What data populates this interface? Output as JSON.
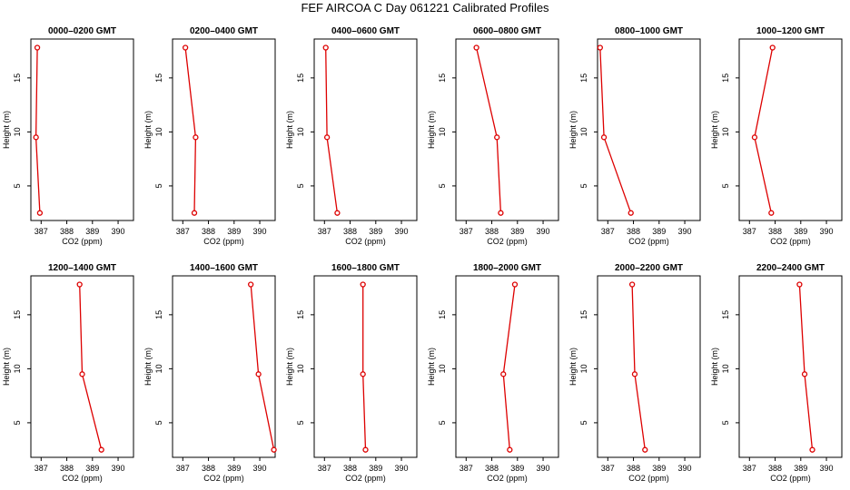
{
  "title": "FEF AIRCOA C  Day 061221  Calibrated Profiles",
  "colors": {
    "series": "#dd0000",
    "axis": "#000000"
  },
  "chart_data": [
    {
      "type": "line",
      "title": "0000–0200 GMT",
      "xlabel": "CO2 (ppm)",
      "ylabel": "Height (m)",
      "xlim": [
        386.6,
        390.6
      ],
      "ylim": [
        1.8,
        18.6
      ],
      "xticks": [
        387,
        388,
        389,
        390
      ],
      "yticks": [
        5,
        10,
        15
      ],
      "series": [
        {
          "x": [
            386.85,
            386.8,
            386.95
          ],
          "y": [
            17.8,
            9.5,
            2.5
          ]
        }
      ]
    },
    {
      "type": "line",
      "title": "0200–0400 GMT",
      "xlabel": "CO2 (ppm)",
      "ylabel": "Height (m)",
      "xlim": [
        386.6,
        390.6
      ],
      "ylim": [
        1.8,
        18.6
      ],
      "xticks": [
        387,
        388,
        389,
        390
      ],
      "yticks": [
        5,
        10,
        15
      ],
      "series": [
        {
          "x": [
            387.1,
            387.5,
            387.45
          ],
          "y": [
            17.8,
            9.5,
            2.5
          ]
        }
      ]
    },
    {
      "type": "line",
      "title": "0400–0600 GMT",
      "xlabel": "CO2 (ppm)",
      "ylabel": "Height (m)",
      "xlim": [
        386.6,
        390.6
      ],
      "ylim": [
        1.8,
        18.6
      ],
      "xticks": [
        387,
        388,
        389,
        390
      ],
      "yticks": [
        5,
        10,
        15
      ],
      "series": [
        {
          "x": [
            387.05,
            387.1,
            387.5
          ],
          "y": [
            17.8,
            9.5,
            2.5
          ]
        }
      ]
    },
    {
      "type": "line",
      "title": "0600–0800 GMT",
      "xlabel": "CO2 (ppm)",
      "ylabel": "Height (m)",
      "xlim": [
        386.6,
        390.6
      ],
      "ylim": [
        1.8,
        18.6
      ],
      "xticks": [
        387,
        388,
        389,
        390
      ],
      "yticks": [
        5,
        10,
        15
      ],
      "series": [
        {
          "x": [
            387.4,
            388.2,
            388.35
          ],
          "y": [
            17.8,
            9.5,
            2.5
          ]
        }
      ]
    },
    {
      "type": "line",
      "title": "0800–1000 GMT",
      "xlabel": "CO2 (ppm)",
      "ylabel": "Height (m)",
      "xlim": [
        386.6,
        390.6
      ],
      "ylim": [
        1.8,
        18.6
      ],
      "xticks": [
        387,
        388,
        389,
        390
      ],
      "yticks": [
        5,
        10,
        15
      ],
      "series": [
        {
          "x": [
            386.7,
            386.85,
            387.9
          ],
          "y": [
            17.8,
            9.5,
            2.5
          ]
        }
      ]
    },
    {
      "type": "line",
      "title": "1000–1200 GMT",
      "xlabel": "CO2 (ppm)",
      "ylabel": "Height (m)",
      "xlim": [
        386.6,
        390.6
      ],
      "ylim": [
        1.8,
        18.6
      ],
      "xticks": [
        387,
        388,
        389,
        390
      ],
      "yticks": [
        5,
        10,
        15
      ],
      "series": [
        {
          "x": [
            387.9,
            387.2,
            387.85
          ],
          "y": [
            17.8,
            9.5,
            2.5
          ]
        }
      ]
    },
    {
      "type": "line",
      "title": "1200–1400 GMT",
      "xlabel": "CO2 (ppm)",
      "ylabel": "Height (m)",
      "xlim": [
        386.6,
        390.6
      ],
      "ylim": [
        1.8,
        18.6
      ],
      "xticks": [
        387,
        388,
        389,
        390
      ],
      "yticks": [
        5,
        10,
        15
      ],
      "series": [
        {
          "x": [
            388.5,
            388.6,
            389.35
          ],
          "y": [
            17.8,
            9.5,
            2.5
          ]
        }
      ]
    },
    {
      "type": "line",
      "title": "1400–1600 GMT",
      "xlabel": "CO2 (ppm)",
      "ylabel": "Height (m)",
      "xlim": [
        386.6,
        390.6
      ],
      "ylim": [
        1.8,
        18.6
      ],
      "xticks": [
        387,
        388,
        389,
        390
      ],
      "yticks": [
        5,
        10,
        15
      ],
      "series": [
        {
          "x": [
            389.65,
            389.95,
            390.55
          ],
          "y": [
            17.8,
            9.5,
            2.5
          ]
        }
      ]
    },
    {
      "type": "line",
      "title": "1600–1800 GMT",
      "xlabel": "CO2 (ppm)",
      "ylabel": "Height (m)",
      "xlim": [
        386.6,
        390.6
      ],
      "ylim": [
        1.8,
        18.6
      ],
      "xticks": [
        387,
        388,
        389,
        390
      ],
      "yticks": [
        5,
        10,
        15
      ],
      "series": [
        {
          "x": [
            388.5,
            388.5,
            388.6
          ],
          "y": [
            17.8,
            9.5,
            2.5
          ]
        }
      ]
    },
    {
      "type": "line",
      "title": "1800–2000 GMT",
      "xlabel": "CO2 (ppm)",
      "ylabel": "Height (m)",
      "xlim": [
        386.6,
        390.6
      ],
      "ylim": [
        1.8,
        18.6
      ],
      "xticks": [
        387,
        388,
        389,
        390
      ],
      "yticks": [
        5,
        10,
        15
      ],
      "series": [
        {
          "x": [
            388.9,
            388.45,
            388.7
          ],
          "y": [
            17.8,
            9.5,
            2.5
          ]
        }
      ]
    },
    {
      "type": "line",
      "title": "2000–2200 GMT",
      "xlabel": "CO2 (ppm)",
      "ylabel": "Height (m)",
      "xlim": [
        386.6,
        390.6
      ],
      "ylim": [
        1.8,
        18.6
      ],
      "xticks": [
        387,
        388,
        389,
        390
      ],
      "yticks": [
        5,
        10,
        15
      ],
      "series": [
        {
          "x": [
            387.95,
            388.05,
            388.45
          ],
          "y": [
            17.8,
            9.5,
            2.5
          ]
        }
      ]
    },
    {
      "type": "line",
      "title": "2200–2400 GMT",
      "xlabel": "CO2 (ppm)",
      "ylabel": "Height (m)",
      "xlim": [
        386.6,
        390.6
      ],
      "ylim": [
        1.8,
        18.6
      ],
      "xticks": [
        387,
        388,
        389,
        390
      ],
      "yticks": [
        5,
        10,
        15
      ],
      "series": [
        {
          "x": [
            388.95,
            389.15,
            389.45
          ],
          "y": [
            17.8,
            9.5,
            2.5
          ]
        }
      ]
    }
  ]
}
